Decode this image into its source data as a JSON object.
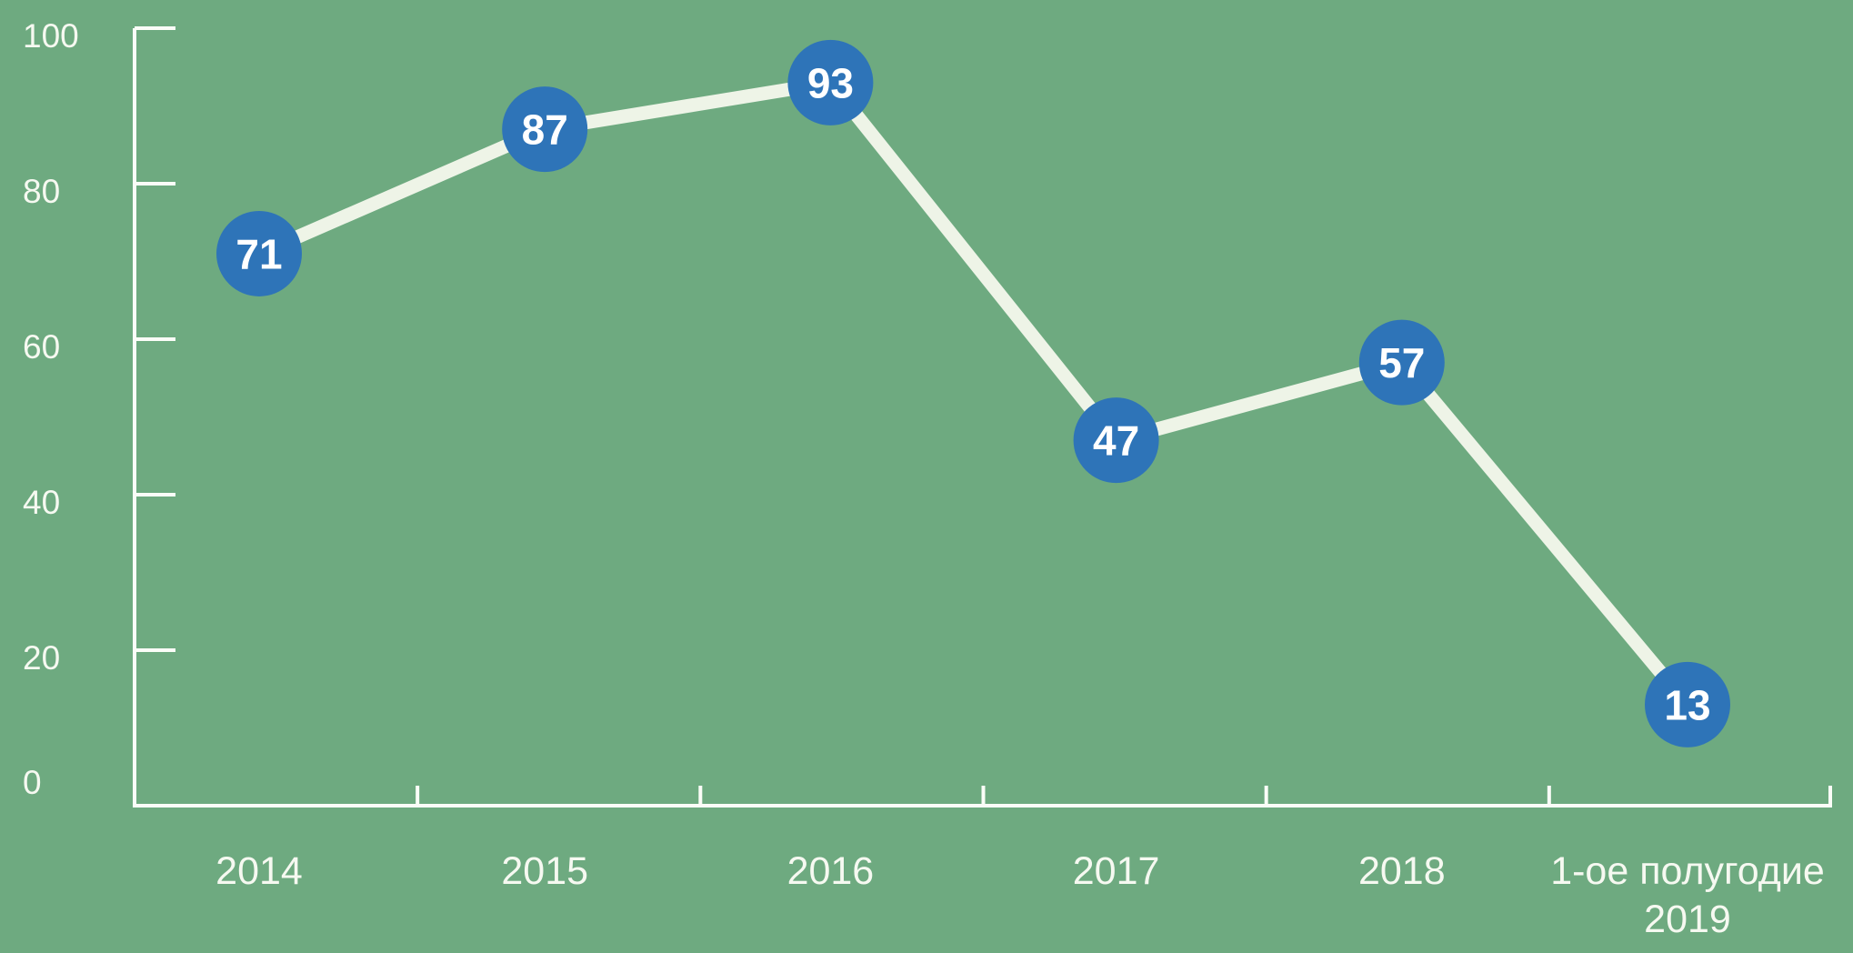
{
  "chart_data": {
    "type": "line",
    "categories": [
      "2014",
      "2015",
      "2016",
      "2017",
      "2018",
      "1-ое полугодие 2019"
    ],
    "category_lines": [
      [
        "2014"
      ],
      [
        "2015"
      ],
      [
        "2016"
      ],
      [
        "2017"
      ],
      [
        "2018"
      ],
      [
        "1-ое полугодие",
        "2019"
      ]
    ],
    "values": [
      71,
      87,
      93,
      47,
      57,
      13
    ],
    "series": [
      {
        "name": "values-by-year",
        "values": [
          71,
          87,
          93,
          47,
          57,
          13
        ]
      }
    ],
    "title": "",
    "xlabel": "",
    "ylabel": "",
    "ylim": [
      0,
      100
    ],
    "yticks": [
      0,
      20,
      40,
      60,
      80,
      100
    ],
    "grid": false,
    "legend": false,
    "point_labels": [
      "71",
      "87",
      "93",
      "47",
      "57",
      "13"
    ],
    "colors": {
      "background": "#6EAA80",
      "line": "#EEF4E7",
      "point_fill": "#2E74B8",
      "point_label": "#FFFFFF",
      "axis": "#FBFDF8",
      "tick_label": "#F6F9F1"
    }
  }
}
